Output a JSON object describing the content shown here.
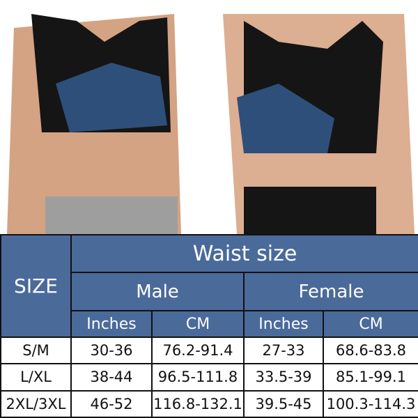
{
  "colors": {
    "header": "#4a6a9a",
    "vest": "#151515",
    "liner": "#2e4f7a",
    "skin": "#d8a888"
  },
  "table": {
    "size_header": "SIZE",
    "group_header": "Waist size",
    "genders": [
      "Male",
      "Female"
    ],
    "units": [
      "Inches",
      "CM",
      "Inches",
      "CM"
    ],
    "rows": [
      {
        "size": "S/M",
        "male_in": "30-36",
        "male_cm": "76.2-91.4",
        "female_in": "27-33",
        "female_cm": "68.6-83.8"
      },
      {
        "size": "L/XL",
        "male_in": "38-44",
        "male_cm": "96.5-111.8",
        "female_in": "33.5-39",
        "female_cm": "85.1-99.1"
      },
      {
        "size": "2XL/3XL",
        "male_in": "46-52",
        "male_cm": "116.8-132.1",
        "female_in": "39.5-45",
        "female_cm": "100.3-114.3"
      }
    ]
  }
}
